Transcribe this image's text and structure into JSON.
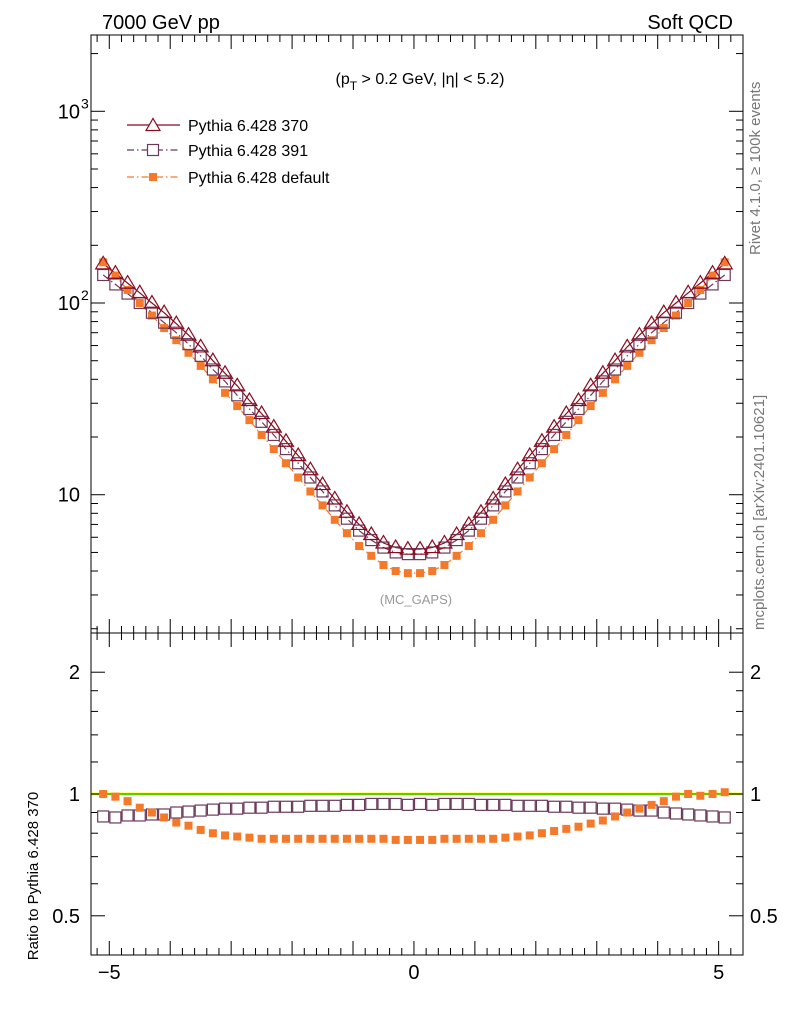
{
  "header": {
    "left": "7000 GeV pp",
    "right": "Soft QCD"
  },
  "side_labels": {
    "rivet": "Rivet 4.1.0, ≥ 100k events",
    "mcplots": "mcplots.cern.ch [arXiv:2401.10621]"
  },
  "chart_data": [
    {
      "panel": "main",
      "type": "scatter",
      "title_parts": {
        "open": "(p",
        "sub": "T",
        "close": " > 0.2 GeV, |η| < 5.2)"
      },
      "title": "(pT > 0.2 GeV, |η| < 5.2)",
      "watermark": "(MC_GAPS)",
      "xlim": [
        -5.3,
        5.4
      ],
      "ylim": [
        1.9,
        2500
      ],
      "yscale": "log",
      "ytick_labels": [
        {
          "value": 1000,
          "base": "10",
          "exp": "3"
        },
        {
          "value": 100,
          "base": "10",
          "exp": "2"
        },
        {
          "value": 10,
          "base": "10",
          "exp": ""
        }
      ],
      "legend_position": "top-left",
      "x": [
        -5.1,
        -4.9,
        -4.7,
        -4.5,
        -4.3,
        -4.1,
        -3.9,
        -3.7,
        -3.5,
        -3.3,
        -3.1,
        -2.9,
        -2.7,
        -2.5,
        -2.3,
        -2.1,
        -1.9,
        -1.7,
        -1.5,
        -1.3,
        -1.1,
        -0.9,
        -0.7,
        -0.5,
        -0.3,
        -0.1,
        0.1,
        0.3,
        0.5,
        0.7,
        0.9,
        1.1,
        1.3,
        1.5,
        1.7,
        1.9,
        2.1,
        2.3,
        2.5,
        2.7,
        2.9,
        3.1,
        3.3,
        3.5,
        3.7,
        3.9,
        4.1,
        4.3,
        4.5,
        4.7,
        4.9,
        5.1
      ],
      "series": [
        {
          "name": "Pythia 6.428 370",
          "color": "#8b0a1e",
          "marker": "open-triangle",
          "line": "solid",
          "values": [
            160,
            143,
            127,
            113,
            100,
            89,
            78,
            68,
            59,
            50,
            43,
            37,
            31,
            26.5,
            22.5,
            19,
            16,
            13.5,
            11.3,
            9.5,
            8.1,
            7.0,
            6.2,
            5.6,
            5.3,
            5.2,
            5.2,
            5.3,
            5.6,
            6.2,
            7.0,
            8.1,
            9.5,
            11.3,
            13.5,
            16,
            19,
            22.5,
            26.5,
            31,
            37,
            43,
            50,
            59,
            68,
            78,
            89,
            100,
            113,
            127,
            143,
            160
          ]
        },
        {
          "name": "Pythia 6.428 391",
          "color": "#6b3a5a",
          "marker": "open-square",
          "line": "dashdot",
          "values": [
            140,
            125,
            112,
            100,
            89,
            79,
            70,
            61,
            53,
            45,
            39,
            33,
            28,
            24,
            20.5,
            17.3,
            14.6,
            12.3,
            10.4,
            8.8,
            7.5,
            6.5,
            5.8,
            5.3,
            5.0,
            4.9,
            4.9,
            5.0,
            5.3,
            5.8,
            6.5,
            7.5,
            8.8,
            10.4,
            12.3,
            14.6,
            17.3,
            20.5,
            24,
            28,
            33,
            39,
            45,
            53,
            61,
            70,
            79,
            89,
            100,
            112,
            125,
            140
          ]
        },
        {
          "name": "Pythia 6.428 default",
          "color": "#f5792a",
          "marker": "filled-square",
          "line": "dashdot",
          "values": [
            163,
            139,
            117,
            100,
            86,
            74,
            64,
            55,
            47,
            40,
            34,
            29,
            24.5,
            20.5,
            17.3,
            14.6,
            12.3,
            10.4,
            8.8,
            7.4,
            6.3,
            5.4,
            4.8,
            4.3,
            4.0,
            3.9,
            3.9,
            4.0,
            4.3,
            4.8,
            5.4,
            6.3,
            7.4,
            8.8,
            10.4,
            12.3,
            14.6,
            17.3,
            20.5,
            24.5,
            29,
            34,
            40,
            47,
            55,
            64,
            74,
            86,
            100,
            117,
            139,
            163
          ]
        }
      ]
    },
    {
      "panel": "ratio",
      "type": "scatter",
      "ylabel": "Ratio to Pythia 6.428 370",
      "xlim": [
        -5.3,
        5.4
      ],
      "ylim": [
        0.4,
        2.5
      ],
      "yscale": "log",
      "ytick_labels": [
        "2",
        "1",
        "0.5"
      ],
      "xtick_labels": [
        "−5",
        "0",
        "5"
      ],
      "reference_line": {
        "value": 1.0,
        "color": "#00aa00",
        "band_color": "#ffff00"
      },
      "x": [
        -5.1,
        -4.9,
        -4.7,
        -4.5,
        -4.3,
        -4.1,
        -3.9,
        -3.7,
        -3.5,
        -3.3,
        -3.1,
        -2.9,
        -2.7,
        -2.5,
        -2.3,
        -2.1,
        -1.9,
        -1.7,
        -1.5,
        -1.3,
        -1.1,
        -0.9,
        -0.7,
        -0.5,
        -0.3,
        -0.1,
        0.1,
        0.3,
        0.5,
        0.7,
        0.9,
        1.1,
        1.3,
        1.5,
        1.7,
        1.9,
        2.1,
        2.3,
        2.5,
        2.7,
        2.9,
        3.1,
        3.3,
        3.5,
        3.7,
        3.9,
        4.1,
        4.3,
        4.5,
        4.7,
        4.9,
        5.1
      ],
      "series": [
        {
          "name": "Pythia 6.428 391",
          "color": "#6b3a5a",
          "marker": "open-square",
          "values": [
            0.88,
            0.875,
            0.885,
            0.885,
            0.89,
            0.89,
            0.9,
            0.905,
            0.91,
            0.915,
            0.92,
            0.92,
            0.925,
            0.925,
            0.93,
            0.93,
            0.93,
            0.935,
            0.935,
            0.935,
            0.94,
            0.94,
            0.945,
            0.945,
            0.945,
            0.94,
            0.945,
            0.94,
            0.945,
            0.945,
            0.945,
            0.94,
            0.94,
            0.94,
            0.935,
            0.935,
            0.935,
            0.93,
            0.93,
            0.925,
            0.925,
            0.92,
            0.92,
            0.915,
            0.91,
            0.91,
            0.9,
            0.895,
            0.89,
            0.885,
            0.88,
            0.875
          ]
        },
        {
          "name": "Pythia 6.428 default",
          "color": "#f5792a",
          "marker": "filled-square",
          "values": [
            1.0,
            0.985,
            0.96,
            0.925,
            0.9,
            0.875,
            0.85,
            0.835,
            0.815,
            0.8,
            0.79,
            0.785,
            0.78,
            0.775,
            0.775,
            0.775,
            0.775,
            0.775,
            0.775,
            0.775,
            0.775,
            0.775,
            0.775,
            0.775,
            0.77,
            0.77,
            0.77,
            0.77,
            0.775,
            0.775,
            0.775,
            0.775,
            0.775,
            0.78,
            0.785,
            0.79,
            0.8,
            0.81,
            0.82,
            0.83,
            0.845,
            0.86,
            0.88,
            0.9,
            0.92,
            0.94,
            0.96,
            0.985,
            1.0,
            0.99,
            1.0,
            1.01
          ]
        }
      ]
    }
  ]
}
